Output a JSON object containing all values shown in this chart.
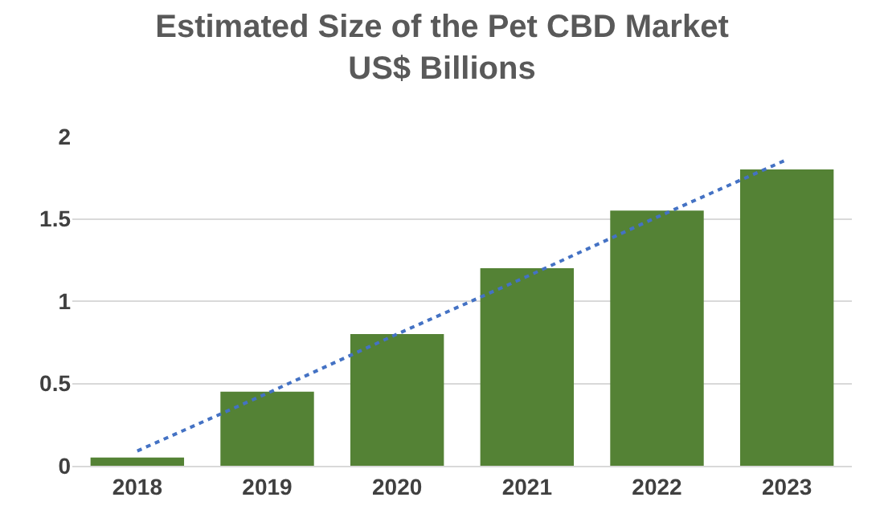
{
  "chart_data": {
    "type": "bar",
    "title": "Estimated Size of the Pet CBD Market",
    "subtitle": "US$ Billions",
    "categories": [
      "2018",
      "2019",
      "2020",
      "2021",
      "2022",
      "2023"
    ],
    "series": [
      {
        "color": "#548235",
        "values": [
          0.05,
          0.45,
          0.8,
          1.2,
          1.55,
          1.8
        ]
      },
      {
        "type": "line",
        "color": "#4472c4",
        "values": [
          0.09,
          0.44,
          0.8,
          1.15,
          1.51,
          1.86
        ],
        "line_style": "dotted",
        "marker": "none"
      }
    ],
    "ylim": [
      0,
      2
    ],
    "yticks": [
      0,
      0.5,
      1,
      1.5,
      2
    ],
    "grid": "y"
  }
}
